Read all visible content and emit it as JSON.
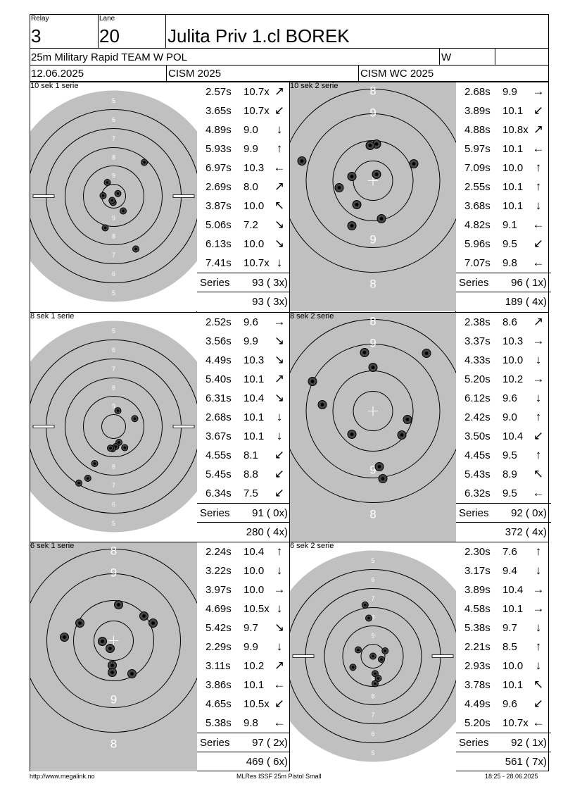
{
  "header": {
    "relay_label": "Relay",
    "relay": "3",
    "lane_label": "Lane",
    "lane": "20",
    "name": "Julita Priv 1.cl BOREK",
    "event": "25m Military Rapid TEAM W",
    "nation": "POL",
    "gender": "W",
    "date": "12.06.2025",
    "competition": "CISM 2025",
    "match": "CISM WC 2025"
  },
  "colors": {
    "target_bg": "#c0c0c0",
    "black_ring": "#000000",
    "white": "#ffffff"
  },
  "series_label": "Series",
  "panels": [
    {
      "title": "10 sek 1 serie",
      "target": "full",
      "shots": [
        {
          "time": "2.57s",
          "value": "10.7x",
          "dir": "↗"
        },
        {
          "time": "3.65s",
          "value": "10.7x",
          "dir": "↙"
        },
        {
          "time": "4.89s",
          "value": "9.0",
          "dir": "↓"
        },
        {
          "time": "5.93s",
          "value": "9.9",
          "dir": "↑"
        },
        {
          "time": "6.97s",
          "value": "10.3",
          "dir": "←"
        },
        {
          "time": "2.69s",
          "value": "8.0",
          "dir": "↗"
        },
        {
          "time": "3.87s",
          "value": "10.0",
          "dir": "↖"
        },
        {
          "time": "5.06s",
          "value": "7.2",
          "dir": "↘"
        },
        {
          "time": "6.13s",
          "value": "10.0",
          "dir": "↘"
        },
        {
          "time": "7.41s",
          "value": "10.7x",
          "dir": "↓"
        }
      ],
      "series": "93 ( 3x)",
      "total": "93 ( 3x)"
    },
    {
      "title": "10 sek 2 serie",
      "target": "zoom",
      "shots": [
        {
          "time": "2.68s",
          "value": "9.9",
          "dir": "→"
        },
        {
          "time": "3.89s",
          "value": "10.1",
          "dir": "↙"
        },
        {
          "time": "4.88s",
          "value": "10.8x",
          "dir": "↗"
        },
        {
          "time": "5.97s",
          "value": "10.1",
          "dir": "←"
        },
        {
          "time": "7.09s",
          "value": "10.0",
          "dir": "↑"
        },
        {
          "time": "2.55s",
          "value": "10.1",
          "dir": "↑"
        },
        {
          "time": "3.68s",
          "value": "10.1",
          "dir": "↓"
        },
        {
          "time": "4.82s",
          "value": "9.1",
          "dir": "←"
        },
        {
          "time": "5.96s",
          "value": "9.5",
          "dir": "↙"
        },
        {
          "time": "7.07s",
          "value": "9.8",
          "dir": "←"
        }
      ],
      "series": "96 ( 1x)",
      "total": "189 ( 4x)"
    },
    {
      "title": "8 sek 1 serie",
      "target": "full",
      "shots": [
        {
          "time": "2.52s",
          "value": "9.6",
          "dir": "→"
        },
        {
          "time": "3.56s",
          "value": "9.9",
          "dir": "↘"
        },
        {
          "time": "4.49s",
          "value": "10.3",
          "dir": "↘"
        },
        {
          "time": "5.40s",
          "value": "10.1",
          "dir": "↗"
        },
        {
          "time": "6.31s",
          "value": "10.4",
          "dir": "↘"
        },
        {
          "time": "2.68s",
          "value": "10.1",
          "dir": "↓"
        },
        {
          "time": "3.67s",
          "value": "10.1",
          "dir": "↓"
        },
        {
          "time": "4.55s",
          "value": "8.1",
          "dir": "↙"
        },
        {
          "time": "5.45s",
          "value": "8.8",
          "dir": "↙"
        },
        {
          "time": "6.34s",
          "value": "7.5",
          "dir": "↙"
        }
      ],
      "series": "91 ( 0x)",
      "total": "280 ( 4x)"
    },
    {
      "title": "8 sek 2 serie",
      "target": "zoom",
      "shots": [
        {
          "time": "2.38s",
          "value": "8.6",
          "dir": "↗"
        },
        {
          "time": "3.37s",
          "value": "10.3",
          "dir": "→"
        },
        {
          "time": "4.33s",
          "value": "10.0",
          "dir": "↓"
        },
        {
          "time": "5.20s",
          "value": "10.2",
          "dir": "→"
        },
        {
          "time": "6.12s",
          "value": "9.6",
          "dir": "↓"
        },
        {
          "time": "2.42s",
          "value": "9.0",
          "dir": "↑"
        },
        {
          "time": "3.50s",
          "value": "10.4",
          "dir": "↙"
        },
        {
          "time": "4.45s",
          "value": "9.5",
          "dir": "↑"
        },
        {
          "time": "5.43s",
          "value": "8.9",
          "dir": "↖"
        },
        {
          "time": "6.32s",
          "value": "9.5",
          "dir": "←"
        }
      ],
      "series": "92 ( 0x)",
      "total": "372 ( 4x)"
    },
    {
      "title": "6 sek 1 serie",
      "target": "zoom",
      "shots": [
        {
          "time": "2.24s",
          "value": "10.4",
          "dir": "↑"
        },
        {
          "time": "3.22s",
          "value": "10.0",
          "dir": "↓"
        },
        {
          "time": "3.97s",
          "value": "10.0",
          "dir": "→"
        },
        {
          "time": "4.69s",
          "value": "10.5x",
          "dir": "↓"
        },
        {
          "time": "5.42s",
          "value": "9.7",
          "dir": "↘"
        },
        {
          "time": "2.29s",
          "value": "9.9",
          "dir": "↓"
        },
        {
          "time": "3.11s",
          "value": "10.2",
          "dir": "↗"
        },
        {
          "time": "3.86s",
          "value": "10.1",
          "dir": "←"
        },
        {
          "time": "4.65s",
          "value": "10.5x",
          "dir": "↙"
        },
        {
          "time": "5.38s",
          "value": "9.8",
          "dir": "←"
        }
      ],
      "series": "97 ( 2x)",
      "total": "469 ( 6x)"
    },
    {
      "title": "6 sek 2 serie",
      "target": "full",
      "shots": [
        {
          "time": "2.30s",
          "value": "7.6",
          "dir": "↑"
        },
        {
          "time": "3.17s",
          "value": "9.4",
          "dir": "↓"
        },
        {
          "time": "3.89s",
          "value": "10.4",
          "dir": "→"
        },
        {
          "time": "4.58s",
          "value": "10.1",
          "dir": "→"
        },
        {
          "time": "5.38s",
          "value": "9.7",
          "dir": "↓"
        },
        {
          "time": "2.21s",
          "value": "8.5",
          "dir": "↑"
        },
        {
          "time": "2.93s",
          "value": "10.0",
          "dir": "↓"
        },
        {
          "time": "3.78s",
          "value": "10.1",
          "dir": "↖"
        },
        {
          "time": "4.49s",
          "value": "9.6",
          "dir": "↙"
        },
        {
          "time": "5.20s",
          "value": "10.7x",
          "dir": "←"
        }
      ],
      "series": "92 ( 1x)",
      "total": "561 ( 7x)"
    }
  ],
  "full_ring_labels": [
    "5",
    "6",
    "7",
    "8",
    "9"
  ],
  "zoom_ring_labels": [
    "8",
    "9"
  ],
  "footer": {
    "left": "http://www.megalink.no",
    "center": "MLRes ISSF 25m Pistol Small",
    "right": "18:25 - 28.06.2025"
  }
}
